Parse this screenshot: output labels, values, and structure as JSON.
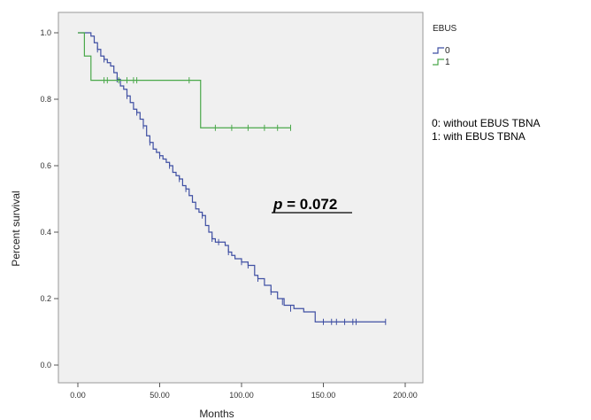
{
  "chart_data": {
    "type": "line",
    "xlabel": "Months",
    "ylabel": "Percent survival",
    "xlim": [
      0,
      200
    ],
    "ylim": [
      0,
      1.0
    ],
    "xticks": [
      0,
      50,
      100,
      150,
      200
    ],
    "xtick_labels": [
      "0.00",
      "50.00",
      "100.00",
      "150.00",
      "200.00"
    ],
    "yticks": [
      0,
      0.2,
      0.4,
      0.6,
      0.8,
      1.0
    ],
    "ytick_labels": [
      "0.0",
      "0.2",
      "0.4",
      "0.6",
      "0.8",
      "1.0"
    ],
    "grid": false,
    "legend_title": "EBUS",
    "legend_position": "top-right, outside plot",
    "annotation_p": "p = 0.072",
    "note_lines": [
      "0: without EBUS TBNA",
      "1: with EBUS TBNA"
    ],
    "series": [
      {
        "name": "0",
        "color": "#3f4fa3",
        "step_x": [
          0,
          6,
          8,
          10,
          12,
          14,
          16,
          18,
          20,
          22,
          24,
          26,
          28,
          30,
          32,
          34,
          36,
          38,
          40,
          42,
          44,
          46,
          48,
          50,
          52,
          54,
          56,
          58,
          60,
          62,
          64,
          66,
          68,
          70,
          72,
          74,
          76,
          78,
          80,
          82,
          84,
          86,
          88,
          90,
          92,
          94,
          96,
          98,
          100,
          104,
          108,
          110,
          114,
          118,
          122,
          126,
          132,
          138,
          145,
          150,
          188
        ],
        "step_y": [
          1.0,
          1.0,
          0.99,
          0.97,
          0.95,
          0.93,
          0.92,
          0.91,
          0.9,
          0.88,
          0.86,
          0.84,
          0.83,
          0.81,
          0.79,
          0.77,
          0.76,
          0.74,
          0.72,
          0.69,
          0.67,
          0.65,
          0.64,
          0.63,
          0.62,
          0.61,
          0.6,
          0.58,
          0.57,
          0.56,
          0.54,
          0.53,
          0.51,
          0.49,
          0.47,
          0.46,
          0.45,
          0.42,
          0.4,
          0.38,
          0.37,
          0.37,
          0.37,
          0.36,
          0.34,
          0.33,
          0.32,
          0.32,
          0.31,
          0.3,
          0.27,
          0.26,
          0.24,
          0.22,
          0.2,
          0.18,
          0.17,
          0.16,
          0.13,
          0.13,
          0.13
        ],
        "censor_x": [
          12,
          16,
          24,
          30,
          36,
          40,
          44,
          50,
          56,
          62,
          66,
          76,
          82,
          86,
          92,
          100,
          104,
          110,
          118,
          125,
          130,
          150,
          155,
          158,
          163,
          168,
          170,
          188
        ],
        "censor_y": [
          0.95,
          0.92,
          0.86,
          0.81,
          0.76,
          0.72,
          0.67,
          0.63,
          0.6,
          0.56,
          0.53,
          0.45,
          0.38,
          0.37,
          0.34,
          0.31,
          0.3,
          0.26,
          0.22,
          0.19,
          0.17,
          0.13,
          0.13,
          0.13,
          0.13,
          0.13,
          0.13,
          0.13
        ]
      },
      {
        "name": "1",
        "color": "#4aa84a",
        "step_x": [
          0,
          4,
          8,
          75,
          130
        ],
        "step_y": [
          1.0,
          0.93,
          0.857,
          0.714,
          0.714
        ],
        "censor_x": [
          16,
          18,
          25,
          30,
          34,
          36,
          68,
          84,
          94,
          104,
          114,
          122,
          130
        ],
        "censor_y": [
          0.857,
          0.857,
          0.857,
          0.857,
          0.857,
          0.857,
          0.857,
          0.714,
          0.714,
          0.714,
          0.714,
          0.714,
          0.714
        ]
      }
    ]
  }
}
